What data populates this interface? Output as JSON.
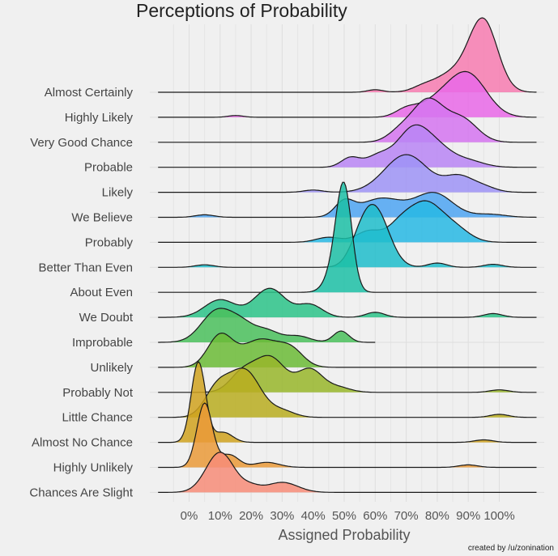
{
  "chart_data": {
    "type": "area",
    "title": "Perceptions of Probability",
    "xlabel": "Assigned Probability",
    "ylabel": "",
    "credit": "created by /u/zonination",
    "xlim": [
      -15,
      112
    ],
    "x_ticks": [
      0,
      10,
      20,
      30,
      40,
      50,
      60,
      70,
      80,
      90,
      100
    ],
    "x_tick_labels": [
      "0%",
      "10%",
      "20%",
      "30%",
      "40%",
      "50%",
      "60%",
      "70%",
      "80%",
      "90%",
      "100%"
    ],
    "grid": true,
    "categories": [
      "Almost Certainly",
      "Highly Likely",
      "Very Good Chance",
      "Probable",
      "Likely",
      "We Believe",
      "Probably",
      "Better Than Even",
      "About Even",
      "We Doubt",
      "Improbable",
      "Unlikely",
      "Probably Not",
      "Little Chance",
      "Almost No Chance",
      "Highly Unlikely",
      "Chances Are Slight"
    ],
    "series": [
      {
        "category": "Almost Certainly",
        "color": "#f77bb0",
        "domain": [
          -10,
          112
        ],
        "peaks": [
          {
            "x": 95,
            "h": 2.6,
            "w": 4.5
          },
          {
            "x": 86,
            "h": 0.8,
            "w": 7
          },
          {
            "x": 60,
            "h": 0.1,
            "w": 2.5
          },
          {
            "x": 75,
            "h": 0.1,
            "w": 3
          }
        ]
      },
      {
        "category": "Highly Likely",
        "color": "#e969e8",
        "domain": [
          -10,
          112
        ],
        "peaks": [
          {
            "x": 90,
            "h": 1.65,
            "w": 6
          },
          {
            "x": 80,
            "h": 0.6,
            "w": 6
          },
          {
            "x": 70,
            "h": 0.28,
            "w": 3.5
          },
          {
            "x": 15,
            "h": 0.07,
            "w": 2.5
          }
        ]
      },
      {
        "category": "Very Good Chance",
        "color": "#d574f0",
        "domain": [
          -10,
          112
        ],
        "peaks": [
          {
            "x": 77,
            "h": 1.65,
            "w": 5
          },
          {
            "x": 88,
            "h": 0.9,
            "w": 5
          },
          {
            "x": 68,
            "h": 0.4,
            "w": 4
          }
        ]
      },
      {
        "category": "Probable",
        "color": "#b985f5",
        "domain": [
          -10,
          112
        ],
        "peaks": [
          {
            "x": 72,
            "h": 1.45,
            "w": 5
          },
          {
            "x": 80,
            "h": 0.7,
            "w": 5
          },
          {
            "x": 52,
            "h": 0.38,
            "w": 3
          },
          {
            "x": 61,
            "h": 0.45,
            "w": 4
          },
          {
            "x": 90,
            "h": 0.25,
            "w": 5
          }
        ]
      },
      {
        "category": "Likely",
        "color": "#9d93f6",
        "domain": [
          -10,
          112
        ],
        "peaks": [
          {
            "x": 70,
            "h": 1.5,
            "w": 7
          },
          {
            "x": 87,
            "h": 0.6,
            "w": 4.5
          },
          {
            "x": 40,
            "h": 0.09,
            "w": 3
          },
          {
            "x": 95,
            "h": 0.2,
            "w": 4
          }
        ]
      },
      {
        "category": "We Believe",
        "color": "#4ea4f2",
        "domain": [
          -10,
          112
        ],
        "peaks": [
          {
            "x": 79,
            "h": 0.95,
            "w": 6
          },
          {
            "x": 62,
            "h": 0.75,
            "w": 7
          },
          {
            "x": 50,
            "h": 0.55,
            "w": 3
          },
          {
            "x": 5,
            "h": 0.1,
            "w": 3
          },
          {
            "x": 97,
            "h": 0.12,
            "w": 5
          }
        ]
      },
      {
        "category": "Probably",
        "color": "#27b8e4",
        "domain": [
          -10,
          112
        ],
        "peaks": [
          {
            "x": 76,
            "h": 1.45,
            "w": 5
          },
          {
            "x": 68,
            "h": 0.65,
            "w": 4
          },
          {
            "x": 85,
            "h": 0.6,
            "w": 5
          },
          {
            "x": 58,
            "h": 0.45,
            "w": 4
          },
          {
            "x": 45,
            "h": 0.2,
            "w": 4
          }
        ]
      },
      {
        "category": "Better Than Even",
        "color": "#1fbdcb",
        "domain": [
          -10,
          112
        ],
        "peaks": [
          {
            "x": 60,
            "h": 2.25,
            "w": 4.5
          },
          {
            "x": 55,
            "h": 0.6,
            "w": 3.5
          },
          {
            "x": 80,
            "h": 0.17,
            "w": 3
          },
          {
            "x": 98,
            "h": 0.12,
            "w": 3
          },
          {
            "x": 5,
            "h": 0.1,
            "w": 3
          }
        ]
      },
      {
        "category": "About Even",
        "color": "#1cbfa6",
        "domain": [
          -10,
          112
        ],
        "peaks": [
          {
            "x": 50,
            "h": 3.9,
            "w": 2.5
          },
          {
            "x": 47,
            "h": 0.8,
            "w": 3
          }
        ]
      },
      {
        "category": "We Doubt",
        "color": "#2bc388",
        "domain": [
          -10,
          112
        ],
        "peaks": [
          {
            "x": 26,
            "h": 1.15,
            "w": 5
          },
          {
            "x": 10,
            "h": 0.7,
            "w": 5
          },
          {
            "x": 39,
            "h": 0.5,
            "w": 4
          },
          {
            "x": 60,
            "h": 0.2,
            "w": 3
          },
          {
            "x": 98,
            "h": 0.15,
            "w": 3
          }
        ]
      },
      {
        "category": "Improbable",
        "color": "#4ac05c",
        "domain": [
          -10,
          60
        ],
        "peaks": [
          {
            "x": 9,
            "h": 1.25,
            "w": 5
          },
          {
            "x": 17,
            "h": 0.6,
            "w": 4
          },
          {
            "x": 25,
            "h": 0.45,
            "w": 4
          },
          {
            "x": 35,
            "h": 0.25,
            "w": 4
          },
          {
            "x": 49,
            "h": 0.45,
            "w": 2.5
          }
        ]
      },
      {
        "category": "Unlikely",
        "color": "#6bbb36",
        "domain": [
          -10,
          112
        ],
        "peaks": [
          {
            "x": 10,
            "h": 1.25,
            "w": 4
          },
          {
            "x": 23,
            "h": 1.1,
            "w": 6
          },
          {
            "x": 33,
            "h": 0.6,
            "w": 4
          }
        ]
      },
      {
        "category": "Probably Not",
        "color": "#98b62a",
        "domain": [
          -10,
          112
        ],
        "peaks": [
          {
            "x": 26,
            "h": 1.4,
            "w": 5
          },
          {
            "x": 17,
            "h": 0.7,
            "w": 4
          },
          {
            "x": 39,
            "h": 0.9,
            "w": 4
          },
          {
            "x": 48,
            "h": 0.2,
            "w": 4
          },
          {
            "x": 100,
            "h": 0.1,
            "w": 3
          }
        ]
      },
      {
        "category": "Little Chance",
        "color": "#b9ad20",
        "domain": [
          -10,
          112
        ],
        "peaks": [
          {
            "x": 18,
            "h": 1.85,
            "w": 5
          },
          {
            "x": 9,
            "h": 1.1,
            "w": 4
          },
          {
            "x": 30,
            "h": 0.25,
            "w": 4
          },
          {
            "x": 100,
            "h": 0.12,
            "w": 3
          }
        ]
      },
      {
        "category": "Almost No Chance",
        "color": "#d0a21e",
        "domain": [
          -10,
          112
        ],
        "peaks": [
          {
            "x": 3,
            "h": 3.2,
            "w": 2.3
          },
          {
            "x": 11,
            "h": 0.4,
            "w": 3
          },
          {
            "x": 95,
            "h": 0.1,
            "w": 3
          }
        ]
      },
      {
        "category": "Highly Unlikely",
        "color": "#ea9a38",
        "domain": [
          -10,
          112
        ],
        "peaks": [
          {
            "x": 5,
            "h": 2.55,
            "w": 2.5
          },
          {
            "x": 13,
            "h": 0.5,
            "w": 3
          },
          {
            "x": 25,
            "h": 0.2,
            "w": 4
          },
          {
            "x": 90,
            "h": 0.1,
            "w": 3
          }
        ]
      },
      {
        "category": "Chances Are Slight",
        "color": "#f78c78",
        "domain": [
          -10,
          112
        ],
        "peaks": [
          {
            "x": 10,
            "h": 1.6,
            "w": 4.5
          },
          {
            "x": 30,
            "h": 0.4,
            "w": 5
          },
          {
            "x": 20,
            "h": 0.2,
            "w": 3
          }
        ]
      }
    ]
  }
}
